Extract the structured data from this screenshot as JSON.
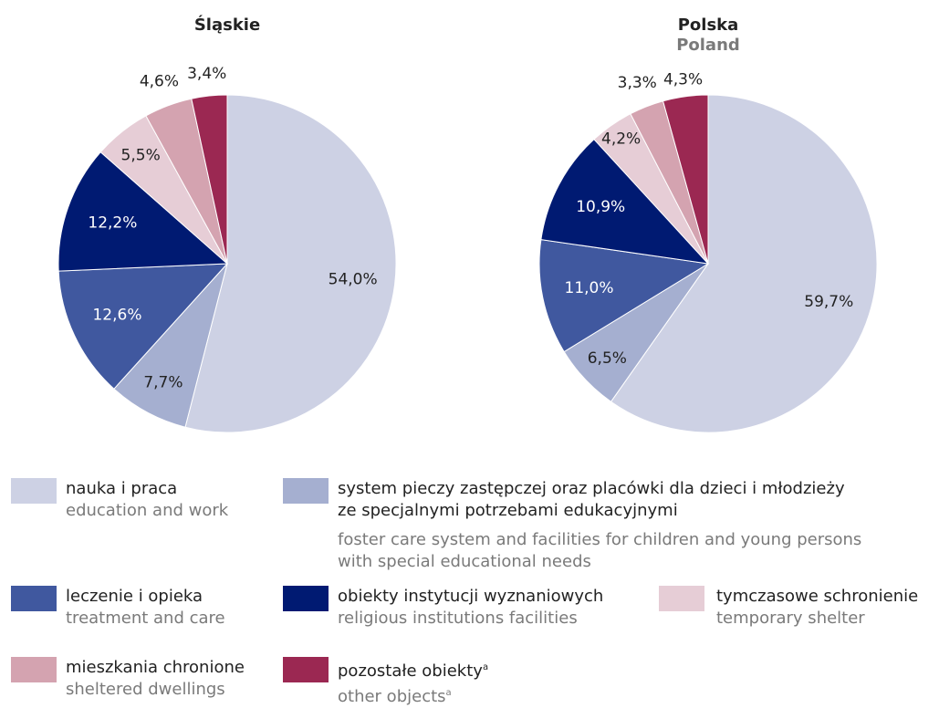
{
  "chart_data": [
    {
      "type": "pie",
      "title": "Śląskie",
      "values": [
        54.0,
        7.7,
        12.6,
        12.2,
        5.5,
        4.6,
        3.4
      ],
      "value_labels": [
        "54,0%",
        "7,7%",
        "12,6%",
        "12,2%",
        "5,5%",
        "4,6%",
        "3,4%"
      ]
    },
    {
      "type": "pie",
      "title": "Polska",
      "subtitle": "Poland",
      "values": [
        59.7,
        6.5,
        11.0,
        10.9,
        4.2,
        3.3,
        4.3
      ],
      "value_labels": [
        "59,7%",
        "6,5%",
        "11,0%",
        "10,9%",
        "4,2%",
        "3,3%",
        "4,3%"
      ]
    }
  ],
  "legend": [
    {
      "label": [
        "nauka i praca"
      ],
      "label_en": [
        "education and work"
      ],
      "color": "#cdd1e4"
    },
    {
      "label": [
        "system pieczy zastępczej oraz placówki dla dzieci i młodzieży",
        "ze specjalnymi potrzebami edukacyjnymi"
      ],
      "label_en": [
        "foster care system and facilities for children and young persons",
        "with special educational needs"
      ],
      "color": "#a5afd0"
    },
    {
      "label": [
        "leczenie i opieka"
      ],
      "label_en": [
        "treatment and care"
      ],
      "color": "#40589f"
    },
    {
      "label": [
        "obiekty instytucji wyznaniowych"
      ],
      "label_en": [
        "religious institutions facilities"
      ],
      "color": "#001a72"
    },
    {
      "label": [
        "tymczasowe schronienie"
      ],
      "label_en": [
        "temporary shelter"
      ],
      "color": "#e6cdd6"
    },
    {
      "label": [
        "mieszkania chronione"
      ],
      "label_en": [
        "sheltered dwellings"
      ],
      "color": "#d4a3b0"
    },
    {
      "label": [
        "pozostałe obiekty"
      ],
      "label_en": [
        "other objects"
      ],
      "color": "#9b2852",
      "marker": "a"
    }
  ]
}
